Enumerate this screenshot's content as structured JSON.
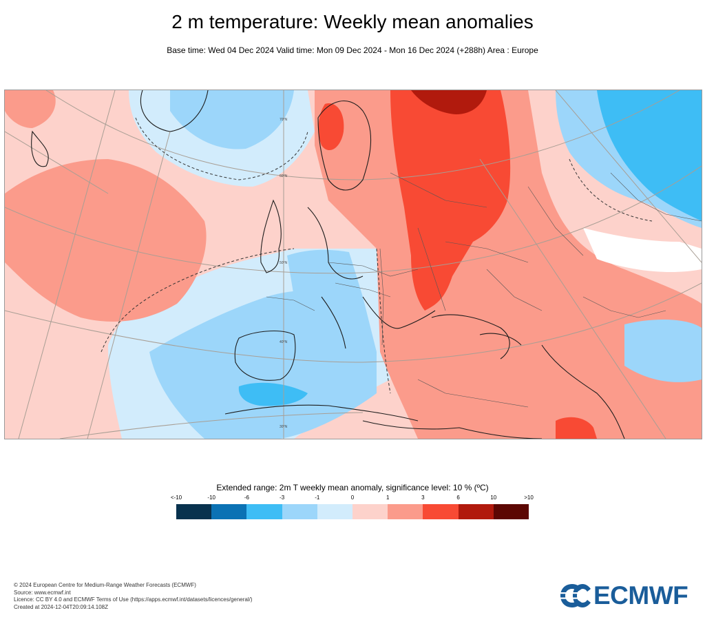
{
  "header": {
    "title": "2 m temperature: Weekly mean anomalies",
    "subtitle": "Base time: Wed 04 Dec 2024 Valid time: Mon 09 Dec 2024 - Mon 16 Dec 2024 (+288h) Area : Europe"
  },
  "map": {
    "area": "Europe",
    "latitude_labels": [
      "70°N",
      "60°N",
      "50°N",
      "40°N",
      "30°N"
    ]
  },
  "legend": {
    "title": "Extended range: 2m T weekly mean anomaly, significance level: 10 % (ºC)",
    "tick_labels": [
      "<-10",
      "-10",
      "-6",
      "-3",
      "-1",
      "0",
      "1",
      "3",
      "6",
      "10",
      ">10"
    ],
    "colors": [
      "#08324e",
      "#0b72b4",
      "#3ebdf5",
      "#9cd6fa",
      "#d2ecfc",
      "#fdd2cb",
      "#fb9b8b",
      "#f84a34",
      "#b11a0d",
      "#5c0703"
    ]
  },
  "footer": {
    "lines": [
      "© 2024 European Centre for Medium-Range Weather Forecasts (ECMWF)",
      "Source: www.ecmwf.int",
      "Licence: CC BY 4.0 and ECMWF Terms of Use (https://apps.ecmwf.int/datasets/licences/general/)",
      "Created at 2024-12-04T20:09:14.108Z"
    ]
  },
  "logo": {
    "text": "ECMWF",
    "color": "#1a5d9a"
  }
}
